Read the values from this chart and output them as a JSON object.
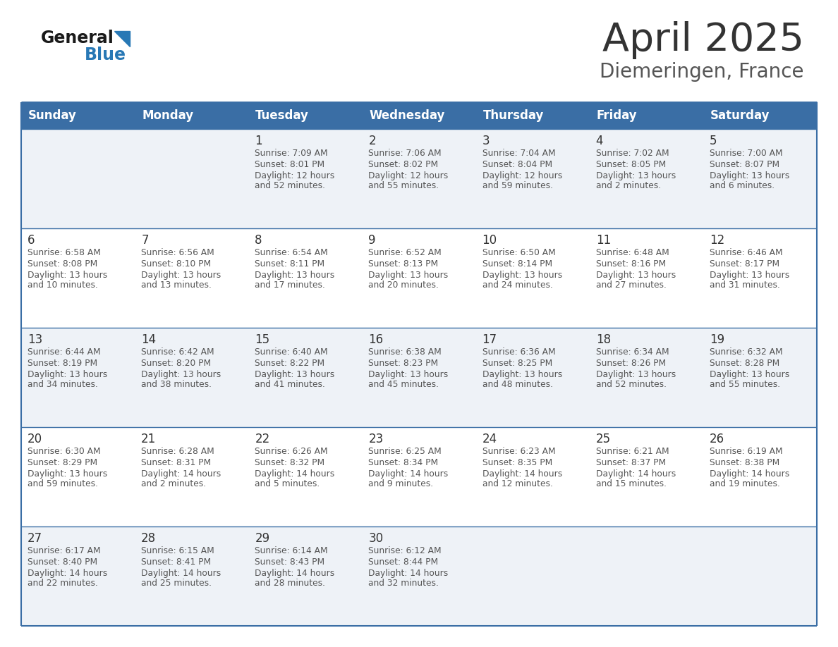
{
  "title": "April 2025",
  "subtitle": "Diemeringen, France",
  "header_color": "#3a6ea5",
  "header_text_color": "#ffffff",
  "cell_bg_light": "#eef2f7",
  "cell_bg_white": "#ffffff",
  "border_color": "#3a6ea5",
  "text_dark": "#333333",
  "text_medium": "#555555",
  "logo_black": "#1a1a1a",
  "logo_blue": "#2878b5",
  "days_of_week": [
    "Sunday",
    "Monday",
    "Tuesday",
    "Wednesday",
    "Thursday",
    "Friday",
    "Saturday"
  ],
  "calendar": [
    [
      {
        "day": null,
        "sunrise": null,
        "sunset": null,
        "daylight": null
      },
      {
        "day": null,
        "sunrise": null,
        "sunset": null,
        "daylight": null
      },
      {
        "day": "1",
        "sunrise": "7:09 AM",
        "sunset": "8:01 PM",
        "daylight": "12 hours\nand 52 minutes."
      },
      {
        "day": "2",
        "sunrise": "7:06 AM",
        "sunset": "8:02 PM",
        "daylight": "12 hours\nand 55 minutes."
      },
      {
        "day": "3",
        "sunrise": "7:04 AM",
        "sunset": "8:04 PM",
        "daylight": "12 hours\nand 59 minutes."
      },
      {
        "day": "4",
        "sunrise": "7:02 AM",
        "sunset": "8:05 PM",
        "daylight": "13 hours\nand 2 minutes."
      },
      {
        "day": "5",
        "sunrise": "7:00 AM",
        "sunset": "8:07 PM",
        "daylight": "13 hours\nand 6 minutes."
      }
    ],
    [
      {
        "day": "6",
        "sunrise": "6:58 AM",
        "sunset": "8:08 PM",
        "daylight": "13 hours\nand 10 minutes."
      },
      {
        "day": "7",
        "sunrise": "6:56 AM",
        "sunset": "8:10 PM",
        "daylight": "13 hours\nand 13 minutes."
      },
      {
        "day": "8",
        "sunrise": "6:54 AM",
        "sunset": "8:11 PM",
        "daylight": "13 hours\nand 17 minutes."
      },
      {
        "day": "9",
        "sunrise": "6:52 AM",
        "sunset": "8:13 PM",
        "daylight": "13 hours\nand 20 minutes."
      },
      {
        "day": "10",
        "sunrise": "6:50 AM",
        "sunset": "8:14 PM",
        "daylight": "13 hours\nand 24 minutes."
      },
      {
        "day": "11",
        "sunrise": "6:48 AM",
        "sunset": "8:16 PM",
        "daylight": "13 hours\nand 27 minutes."
      },
      {
        "day": "12",
        "sunrise": "6:46 AM",
        "sunset": "8:17 PM",
        "daylight": "13 hours\nand 31 minutes."
      }
    ],
    [
      {
        "day": "13",
        "sunrise": "6:44 AM",
        "sunset": "8:19 PM",
        "daylight": "13 hours\nand 34 minutes."
      },
      {
        "day": "14",
        "sunrise": "6:42 AM",
        "sunset": "8:20 PM",
        "daylight": "13 hours\nand 38 minutes."
      },
      {
        "day": "15",
        "sunrise": "6:40 AM",
        "sunset": "8:22 PM",
        "daylight": "13 hours\nand 41 minutes."
      },
      {
        "day": "16",
        "sunrise": "6:38 AM",
        "sunset": "8:23 PM",
        "daylight": "13 hours\nand 45 minutes."
      },
      {
        "day": "17",
        "sunrise": "6:36 AM",
        "sunset": "8:25 PM",
        "daylight": "13 hours\nand 48 minutes."
      },
      {
        "day": "18",
        "sunrise": "6:34 AM",
        "sunset": "8:26 PM",
        "daylight": "13 hours\nand 52 minutes."
      },
      {
        "day": "19",
        "sunrise": "6:32 AM",
        "sunset": "8:28 PM",
        "daylight": "13 hours\nand 55 minutes."
      }
    ],
    [
      {
        "day": "20",
        "sunrise": "6:30 AM",
        "sunset": "8:29 PM",
        "daylight": "13 hours\nand 59 minutes."
      },
      {
        "day": "21",
        "sunrise": "6:28 AM",
        "sunset": "8:31 PM",
        "daylight": "14 hours\nand 2 minutes."
      },
      {
        "day": "22",
        "sunrise": "6:26 AM",
        "sunset": "8:32 PM",
        "daylight": "14 hours\nand 5 minutes."
      },
      {
        "day": "23",
        "sunrise": "6:25 AM",
        "sunset": "8:34 PM",
        "daylight": "14 hours\nand 9 minutes."
      },
      {
        "day": "24",
        "sunrise": "6:23 AM",
        "sunset": "8:35 PM",
        "daylight": "14 hours\nand 12 minutes."
      },
      {
        "day": "25",
        "sunrise": "6:21 AM",
        "sunset": "8:37 PM",
        "daylight": "14 hours\nand 15 minutes."
      },
      {
        "day": "26",
        "sunrise": "6:19 AM",
        "sunset": "8:38 PM",
        "daylight": "14 hours\nand 19 minutes."
      }
    ],
    [
      {
        "day": "27",
        "sunrise": "6:17 AM",
        "sunset": "8:40 PM",
        "daylight": "14 hours\nand 22 minutes."
      },
      {
        "day": "28",
        "sunrise": "6:15 AM",
        "sunset": "8:41 PM",
        "daylight": "14 hours\nand 25 minutes."
      },
      {
        "day": "29",
        "sunrise": "6:14 AM",
        "sunset": "8:43 PM",
        "daylight": "14 hours\nand 28 minutes."
      },
      {
        "day": "30",
        "sunrise": "6:12 AM",
        "sunset": "8:44 PM",
        "daylight": "14 hours\nand 32 minutes."
      },
      {
        "day": null,
        "sunrise": null,
        "sunset": null,
        "daylight": null
      },
      {
        "day": null,
        "sunrise": null,
        "sunset": null,
        "daylight": null
      },
      {
        "day": null,
        "sunrise": null,
        "sunset": null,
        "daylight": null
      }
    ]
  ]
}
